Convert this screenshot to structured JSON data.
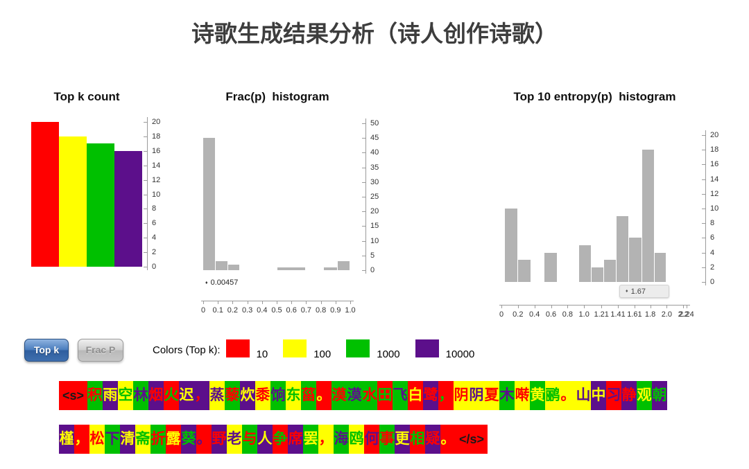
{
  "title": "诗歌生成结果分析（诗人创作诗歌）",
  "colors": {
    "r": "#ff0000",
    "y": "#ffff00",
    "g": "#00c000",
    "p": "#5c0f8b",
    "k": "#1a1a1a",
    "histogram_gray": "#b3b3b3",
    "button_blue": "#3a6db0",
    "title_text": "#3d3d3d"
  },
  "chart_data": [
    {
      "type": "bar",
      "title": "Top k count",
      "categories": [
        "10",
        "100",
        "1000",
        "10000"
      ],
      "values": [
        20,
        18,
        17,
        16
      ],
      "bar_colors": [
        "#ff0000",
        "#ffff00",
        "#00c000",
        "#5c0f8b"
      ],
      "ylim": [
        0,
        20
      ],
      "ytick_step": 2,
      "axis_position": "right",
      "grid": false
    },
    {
      "type": "histogram",
      "title": "Frac(p)  histogram",
      "bar_color": "#b3b3b3",
      "xlim": [
        0,
        1.0
      ],
      "ylim": [
        0,
        50
      ],
      "ytick_step": 5,
      "xticks": [
        "0",
        "0.1",
        "0.2",
        "0.3",
        "0.4",
        "0.5",
        "0.6",
        "0.7",
        "0.8",
        "0.9",
        "1.0"
      ],
      "bins": [
        {
          "x0": 0.0,
          "x1": 0.085,
          "count": 45
        },
        {
          "x0": 0.085,
          "x1": 0.17,
          "count": 3
        },
        {
          "x0": 0.17,
          "x1": 0.25,
          "count": 2
        },
        {
          "x0": 0.505,
          "x1": 0.7,
          "count": 1
        },
        {
          "x0": 0.82,
          "x1": 0.915,
          "count": 1
        },
        {
          "x0": 0.915,
          "x1": 1.0,
          "count": 3
        }
      ],
      "annotation": "0.00457",
      "annotation_marker": "♦",
      "axis_position": "right"
    },
    {
      "type": "histogram",
      "title": "Top 10 entropy(p)  histogram",
      "bar_color": "#b3b3b3",
      "xlim": [
        0,
        2.24
      ],
      "ylim": [
        0,
        20
      ],
      "ytick_step": 2,
      "xticks": [
        "0",
        "0.2",
        "0.4",
        "0.6",
        "0.8",
        "1.0",
        "1.21",
        "1.41",
        "1.61",
        "1.8",
        "2.0",
        "2.2",
        "2.24"
      ],
      "bins": [
        {
          "x0": 0.04,
          "x1": 0.2,
          "count": 10
        },
        {
          "x0": 0.2,
          "x1": 0.36,
          "count": 3
        },
        {
          "x0": 0.52,
          "x1": 0.68,
          "count": 4
        },
        {
          "x0": 0.94,
          "x1": 1.09,
          "count": 5
        },
        {
          "x0": 1.09,
          "x1": 1.24,
          "count": 2
        },
        {
          "x0": 1.24,
          "x1": 1.39,
          "count": 3
        },
        {
          "x0": 1.39,
          "x1": 1.54,
          "count": 9
        },
        {
          "x0": 1.54,
          "x1": 1.7,
          "count": 6
        },
        {
          "x0": 1.7,
          "x1": 1.85,
          "count": 18
        },
        {
          "x0": 1.85,
          "x1": 2.0,
          "count": 4
        }
      ],
      "tooltip": "1.67",
      "tooltip_marker": "♦",
      "axis_position": "right"
    }
  ],
  "buttons": {
    "topk": {
      "label": "Top k",
      "active": true
    },
    "fracp": {
      "label": "Frac P",
      "active": false
    }
  },
  "legend": {
    "label": "Colors (Top k):",
    "items": [
      {
        "label": "10",
        "color": "#ff0000"
      },
      {
        "label": "100",
        "color": "#ffff00"
      },
      {
        "label": "1000",
        "color": "#00c000"
      },
      {
        "label": "10000",
        "color": "#5c0f8b"
      }
    ]
  },
  "poem": {
    "line1": [
      {
        "t": "<s>",
        "bg": "r",
        "fg": "k"
      },
      {
        "t": "积",
        "bg": "g",
        "fg": "r"
      },
      {
        "t": "雨",
        "bg": "p",
        "fg": "y"
      },
      {
        "t": "空",
        "bg": "y",
        "fg": "g"
      },
      {
        "t": "林",
        "bg": "g",
        "fg": "p"
      },
      {
        "t": "烟",
        "bg": "p",
        "fg": "r"
      },
      {
        "t": "火",
        "bg": "r",
        "fg": "g"
      },
      {
        "t": "迟",
        "bg": "p",
        "fg": "y"
      },
      {
        "t": "，",
        "bg": "p",
        "fg": "r"
      },
      {
        "t": "蒸",
        "bg": "y",
        "fg": "p"
      },
      {
        "t": "藜",
        "bg": "g",
        "fg": "r"
      },
      {
        "t": "炊",
        "bg": "p",
        "fg": "y"
      },
      {
        "t": "黍",
        "bg": "y",
        "fg": "r"
      },
      {
        "t": "饷",
        "bg": "g",
        "fg": "p"
      },
      {
        "t": "东",
        "bg": "y",
        "fg": "g"
      },
      {
        "t": "菑",
        "bg": "g",
        "fg": "r"
      },
      {
        "t": "。",
        "bg": "r",
        "fg": "y"
      },
      {
        "t": "漠",
        "bg": "g",
        "fg": "r"
      },
      {
        "t": "漠",
        "bg": "g",
        "fg": "p"
      },
      {
        "t": "水",
        "bg": "g",
        "fg": "r"
      },
      {
        "t": "田",
        "bg": "r",
        "fg": "g"
      },
      {
        "t": "飞",
        "bg": "g",
        "fg": "p"
      },
      {
        "t": "白",
        "bg": "r",
        "fg": "y"
      },
      {
        "t": "鹭",
        "bg": "p",
        "fg": "r"
      },
      {
        "t": "，",
        "bg": "r",
        "fg": "g"
      },
      {
        "t": "阴",
        "bg": "y",
        "fg": "r"
      },
      {
        "t": "阴",
        "bg": "y",
        "fg": "p"
      },
      {
        "t": "夏",
        "bg": "y",
        "fg": "r"
      },
      {
        "t": "木",
        "bg": "g",
        "fg": "p"
      },
      {
        "t": "啭",
        "bg": "y",
        "fg": "r"
      },
      {
        "t": "黄",
        "bg": "g",
        "fg": "y"
      },
      {
        "t": "鹂",
        "bg": "y",
        "fg": "g"
      },
      {
        "t": "。",
        "bg": "y",
        "fg": "r"
      },
      {
        "t": "山",
        "bg": "y",
        "fg": "p"
      },
      {
        "t": "中",
        "bg": "p",
        "fg": "y"
      },
      {
        "t": "习",
        "bg": "r",
        "fg": "p"
      },
      {
        "t": "静",
        "bg": "p",
        "fg": "r"
      },
      {
        "t": "观",
        "bg": "g",
        "fg": "y"
      },
      {
        "t": "朝",
        "bg": "p",
        "fg": "g"
      }
    ],
    "line2": [
      {
        "t": "槿",
        "bg": "p",
        "fg": "y"
      },
      {
        "t": "，",
        "bg": "r",
        "fg": "y"
      },
      {
        "t": "松",
        "bg": "y",
        "fg": "r"
      },
      {
        "t": "下",
        "bg": "g",
        "fg": "p"
      },
      {
        "t": "清",
        "bg": "p",
        "fg": "y"
      },
      {
        "t": "斋",
        "bg": "y",
        "fg": "g"
      },
      {
        "t": "折",
        "bg": "g",
        "fg": "r"
      },
      {
        "t": "露",
        "bg": "r",
        "fg": "y"
      },
      {
        "t": "葵",
        "bg": "p",
        "fg": "g"
      },
      {
        "t": "。",
        "bg": "r",
        "fg": "p"
      },
      {
        "t": "野",
        "bg": "p",
        "fg": "r"
      },
      {
        "t": "老",
        "bg": "y",
        "fg": "p"
      },
      {
        "t": "与",
        "bg": "g",
        "fg": "r"
      },
      {
        "t": "人",
        "bg": "p",
        "fg": "y"
      },
      {
        "t": "争",
        "bg": "r",
        "fg": "g"
      },
      {
        "t": "席",
        "bg": "p",
        "fg": "r"
      },
      {
        "t": "罢",
        "bg": "g",
        "fg": "y"
      },
      {
        "t": "，",
        "bg": "y",
        "fg": "r"
      },
      {
        "t": "海",
        "bg": "g",
        "fg": "p"
      },
      {
        "t": "鸥",
        "bg": "y",
        "fg": "g"
      },
      {
        "t": "何",
        "bg": "r",
        "fg": "p"
      },
      {
        "t": "事",
        "bg": "g",
        "fg": "r"
      },
      {
        "t": "更",
        "bg": "p",
        "fg": "y"
      },
      {
        "t": "相",
        "bg": "r",
        "fg": "g"
      },
      {
        "t": "疑",
        "bg": "p",
        "fg": "r"
      },
      {
        "t": "。",
        "bg": "r",
        "fg": "y"
      },
      {
        "t": "</s>",
        "bg": "r",
        "fg": "k"
      }
    ]
  }
}
